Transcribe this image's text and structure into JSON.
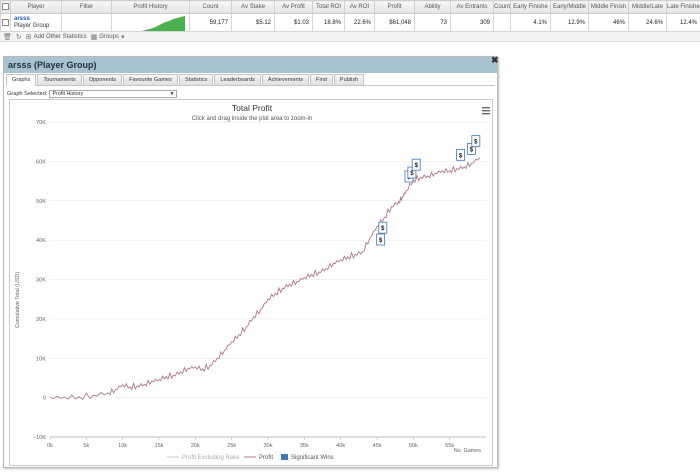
{
  "table": {
    "headers": [
      "Player",
      "Filter",
      "Profit History",
      "Count",
      "Av Stake",
      "Av Profit",
      "Total ROI",
      "Av ROI",
      "Profit",
      "Ability",
      "Av Entrants",
      "Count",
      "Early Finishe",
      "Early/Middle",
      "Middle Finish",
      "Middle/Late",
      "Late Finishes"
    ],
    "row": {
      "player_name": "arsss",
      "player_sub": "Player Group",
      "filter": "",
      "count": "59,177",
      "av_stake": "$5.12",
      "av_profit": "$1.03",
      "total_roi": "18.8%",
      "av_roi": "22.6%",
      "profit": "$61,048",
      "ability": "73",
      "av_entrants": "309",
      "count2": "",
      "early_finishes": "4.1%",
      "early_middle": "12.9%",
      "middle_finish": "46%",
      "middle_late": "24.6%",
      "late_finishes": "12.4%"
    }
  },
  "toolbar": {
    "add_stats_label": "Add Other Statistics",
    "groups_label": "Groups"
  },
  "window": {
    "title": "arsss (Player Group)",
    "close_icon": "close-icon",
    "tabs": [
      "Graphs",
      "Tournaments",
      "Opponents",
      "Favourite Games",
      "Statistics",
      "Leaderboards",
      "Achievements",
      "Find",
      "Publish"
    ],
    "active_tab": "Graphs",
    "graph_selected_label": "Graph Selected:",
    "graph_selected_value": "Profit History"
  },
  "chart_data": {
    "type": "line",
    "title": "Total Profit",
    "subtitle": "Click and drag inside the plot area to zoom-in",
    "ylabel": "Cumulative Total (USD)",
    "xlabel": "No. Games",
    "xlim": [
      0,
      60000
    ],
    "ylim": [
      -10000,
      70000
    ],
    "x_ticks": [
      "0k",
      "5k",
      "10k",
      "15k",
      "20k",
      "25k",
      "30k",
      "35k",
      "40k",
      "45k",
      "50k",
      "55k"
    ],
    "y_ticks": [
      "-10K",
      "0",
      "10K",
      "20K",
      "30K",
      "40K",
      "50K",
      "60K",
      "70K"
    ],
    "grid": true,
    "legend_position": "bottom",
    "legend": [
      "Profit Excluding Rake",
      "Profit",
      "Significant Wins"
    ],
    "colors": {
      "profit": "#b07a86",
      "excluding_rake": "#cccccc",
      "significant_wins": "#3d7ab8"
    },
    "series": [
      {
        "name": "Profit",
        "x": [
          0,
          2000,
          4000,
          6000,
          8000,
          9000,
          10000,
          11000,
          12000,
          13000,
          14000,
          15000,
          16000,
          17000,
          18000,
          19000,
          20000,
          21000,
          22000,
          23000,
          24000,
          25000,
          26000,
          27000,
          28000,
          29000,
          30000,
          31000,
          32000,
          33000,
          34000,
          35000,
          36000,
          37000,
          38000,
          39000,
          40000,
          41000,
          42000,
          43000,
          44000,
          45000,
          46000,
          47000,
          48000,
          48500,
          49000,
          50000,
          51000,
          52000,
          53000,
          54000,
          55000,
          56000,
          57000,
          58000,
          59177
        ],
        "y": [
          0,
          100,
          200,
          600,
          1200,
          2000,
          3300,
          2800,
          3000,
          3400,
          4200,
          4600,
          5400,
          5700,
          6500,
          7500,
          7800,
          7300,
          8100,
          10000,
          12000,
          14200,
          16000,
          18000,
          20500,
          22400,
          25000,
          26500,
          27800,
          28800,
          29500,
          30500,
          31300,
          31900,
          32800,
          34100,
          35000,
          35800,
          36400,
          37000,
          40500,
          43500,
          45800,
          48500,
          49800,
          51000,
          52500,
          55300,
          56000,
          56300,
          57000,
          57600,
          57700,
          58200,
          58600,
          59500,
          61000
        ]
      }
    ],
    "significant_wins": [
      {
        "x": 45500,
        "y": 38000
      },
      {
        "x": 45800,
        "y": 41000
      },
      {
        "x": 49400,
        "y": 54000
      },
      {
        "x": 49800,
        "y": 55000
      },
      {
        "x": 50400,
        "y": 57000
      },
      {
        "x": 56500,
        "y": 59500
      },
      {
        "x": 58000,
        "y": 61000
      },
      {
        "x": 58600,
        "y": 63000
      }
    ]
  }
}
